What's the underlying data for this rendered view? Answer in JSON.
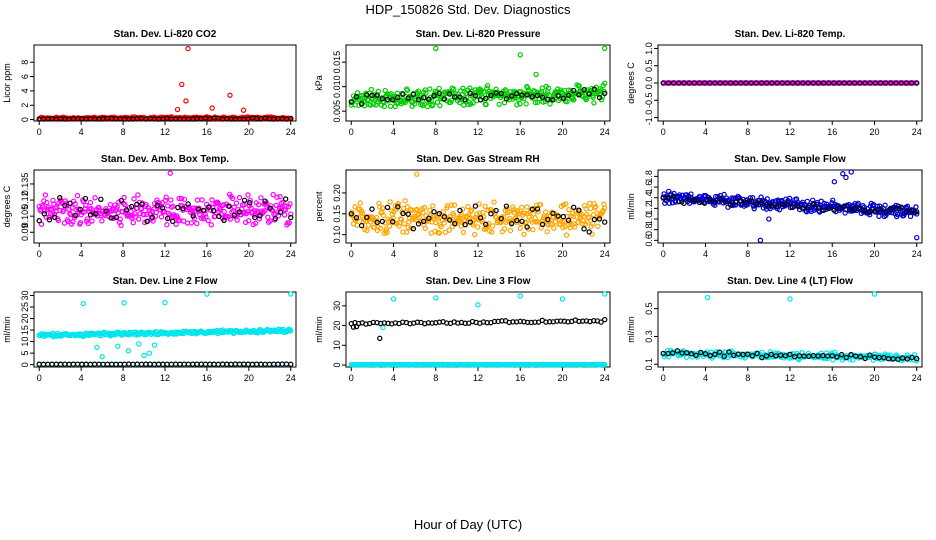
{
  "page": {
    "title": "HDP_150826  Std. Dev. Diagnostics",
    "xlabel": "Hour of Day (UTC)"
  },
  "chart_data": [
    {
      "type": "scatter",
      "title": "Stan. Dev. Li-820 CO2",
      "xlabel": "",
      "ylabel": "Licor ppm",
      "xlim": [
        -0.5,
        24.5
      ],
      "ylim": [
        -0.2,
        10.4
      ],
      "xticks": [
        0,
        4,
        8,
        12,
        16,
        20,
        24
      ],
      "yticks": [
        0,
        2,
        4,
        6,
        8
      ],
      "series": [
        {
          "color": "#ff0000",
          "kind": "noise",
          "base": 0.2,
          "spread": 0.2,
          "n": 220,
          "seed": 11
        },
        {
          "color": "#ff0000",
          "kind": "points",
          "x": [
            14.2,
            13.6,
            18.2,
            14.0,
            13.2,
            16.5,
            19.5
          ],
          "y": [
            9.9,
            4.9,
            3.4,
            2.6,
            1.4,
            1.6,
            1.3
          ]
        },
        {
          "color": "#000000",
          "kind": "noise",
          "base": 0.1,
          "spread": 0.12,
          "n": 60,
          "seed": 12
        }
      ]
    },
    {
      "type": "scatter",
      "title": "Stan. Dev. Li-820 Pressure",
      "xlabel": "",
      "ylabel": "kPa",
      "xlim": [
        -0.5,
        24.5
      ],
      "ylim": [
        0.003,
        0.0185
      ],
      "xticks": [
        0,
        4,
        8,
        12,
        16,
        20,
        24
      ],
      "yticks": [
        0.005,
        0.01,
        0.015
      ],
      "ytick_labels": [
        "0.005",
        "0.010",
        "0.015"
      ],
      "series": [
        {
          "color": "#00cc00",
          "kind": "noise",
          "base": 0.0075,
          "spread": 0.0022,
          "trend": 5e-05,
          "n": 330,
          "seed": 21
        },
        {
          "color": "#00cc00",
          "kind": "points",
          "x": [
            8.0,
            16.0,
            24.0,
            17.5
          ],
          "y": [
            0.0178,
            0.0165,
            0.0178,
            0.0125
          ]
        },
        {
          "color": "#000000",
          "kind": "noise",
          "base": 0.0075,
          "spread": 0.0012,
          "trend": 4e-05,
          "n": 50,
          "seed": 22
        }
      ]
    },
    {
      "type": "scatter",
      "title": "Stan. Dev. Li-820 Temp.",
      "xlabel": "",
      "ylabel": "degrees C",
      "xlim": [
        -0.5,
        24.5
      ],
      "ylim": [
        -1.1,
        1.1
      ],
      "xticks": [
        0,
        4,
        8,
        12,
        16,
        20,
        24
      ],
      "yticks": [
        -1.0,
        -0.5,
        0.0,
        0.5,
        1.0
      ],
      "ytick_labels": [
        "-1.0",
        "-0.5",
        "0.0",
        "0.5",
        "1.0"
      ],
      "series": [
        {
          "color": "#ff00ff",
          "kind": "noise",
          "base": 0.0,
          "spread": 0.0,
          "n": 160,
          "seed": 31
        },
        {
          "color": "#000000",
          "kind": "noise",
          "base": 0.0,
          "spread": 0.0,
          "n": 50,
          "seed": 32
        }
      ]
    },
    {
      "type": "scatter",
      "title": "Stan. Dev. Amb. Box Temp.",
      "xlabel": "",
      "ylabel": "degrees C",
      "xlim": [
        -0.5,
        24.5
      ],
      "ylim": [
        0.08,
        0.148
      ],
      "xticks": [
        0,
        4,
        8,
        12,
        16,
        20,
        24
      ],
      "yticks": [
        0.09,
        0.105,
        0.12,
        0.135
      ],
      "ytick_labels": [
        "0.09",
        "0.105",
        "0.12",
        "0.135"
      ],
      "series": [
        {
          "color": "#ff00ff",
          "kind": "noise",
          "base": 0.11,
          "spread": 0.016,
          "n": 330,
          "seed": 41
        },
        {
          "color": "#000000",
          "kind": "noise",
          "base": 0.11,
          "spread": 0.014,
          "n": 50,
          "seed": 42
        },
        {
          "color": "#ff00ff",
          "kind": "points",
          "x": [
            12.5
          ],
          "y": [
            0.145
          ]
        }
      ]
    },
    {
      "type": "scatter",
      "title": "Stan. Dev. Gas Stream RH",
      "xlabel": "",
      "ylabel": "percent",
      "xlim": [
        -0.5,
        24.5
      ],
      "ylim": [
        0.08,
        0.255
      ],
      "xticks": [
        0,
        4,
        8,
        12,
        16,
        20,
        24
      ],
      "yticks": [
        0.1,
        0.15,
        0.2
      ],
      "ytick_labels": [
        "0.10",
        "0.15",
        "0.20"
      ],
      "series": [
        {
          "color": "#ffa500",
          "kind": "noise",
          "base": 0.14,
          "spread": 0.045,
          "n": 340,
          "seed": 51
        },
        {
          "color": "#000000",
          "kind": "noise",
          "base": 0.14,
          "spread": 0.04,
          "n": 50,
          "seed": 52
        },
        {
          "color": "#ffa500",
          "kind": "points",
          "x": [
            6.2
          ],
          "y": [
            0.245
          ]
        }
      ]
    },
    {
      "type": "scatter",
      "title": "Stan. Dev. Sample Flow",
      "xlabel": "",
      "ylabel": "ml/min",
      "xlim": [
        -0.5,
        24.5
      ],
      "ylim": [
        0.55,
        1.92
      ],
      "xticks": [
        0,
        4,
        8,
        12,
        16,
        20,
        24
      ],
      "yticks": [
        0.6,
        0.8,
        1.0,
        1.2,
        1.4,
        1.6,
        1.8
      ],
      "ytick_labels": [
        "0.6",
        "0.8",
        "1.0",
        "1.2",
        "1.4",
        "1.6",
        "1.8"
      ],
      "series": [
        {
          "color": "#0000cc",
          "kind": "noise",
          "base": 1.4,
          "spread": 0.14,
          "trend": -0.011,
          "n": 330,
          "seed": 61
        },
        {
          "color": "#0000cc",
          "kind": "points",
          "x": [
            17.0,
            17.3,
            17.8,
            9.2,
            24.0,
            16.2,
            10.0
          ],
          "y": [
            1.85,
            1.78,
            1.9,
            0.6,
            0.65,
            1.7,
            1.0
          ]
        },
        {
          "color": "#000000",
          "kind": "noise",
          "base": 1.38,
          "spread": 0.08,
          "trend": -0.01,
          "n": 50,
          "seed": 62
        }
      ]
    },
    {
      "type": "scatter",
      "title": "Stan. Dev. Line 2 Flow",
      "xlabel": "",
      "ylabel": "ml/min",
      "xlim": [
        -0.5,
        24.5
      ],
      "ylim": [
        -1.0,
        31.5
      ],
      "xticks": [
        0,
        4,
        8,
        12,
        16,
        20,
        24
      ],
      "yticks": [
        0,
        5,
        10,
        15,
        20,
        25,
        30
      ],
      "series": [
        {
          "color": "#00e5ee",
          "kind": "noise",
          "base": 12.8,
          "spread": 0.9,
          "trend": 0.08,
          "n": 260,
          "seed": 71
        },
        {
          "color": "#00e5ee",
          "kind": "points",
          "x": [
            4.2,
            8.1,
            12.0,
            16.0,
            24.0,
            5.5,
            6.0,
            8.5,
            10.0,
            11.0,
            9.5,
            6.8,
            7.5,
            10.5
          ],
          "y": [
            26.5,
            26.8,
            26.9,
            30.6,
            30.8,
            7.5,
            3.5,
            6.0,
            4.0,
            8.5,
            9.0,
            12.5,
            8.0,
            5.0
          ]
        },
        {
          "color": "#00e5ee",
          "kind": "noise",
          "base": 0.2,
          "spread": 0.1,
          "n": 60,
          "seed": 73
        },
        {
          "color": "#000000",
          "kind": "noise",
          "base": 0.2,
          "spread": 0.1,
          "n": 60,
          "seed": 72
        }
      ]
    },
    {
      "type": "scatter",
      "title": "Stan. Dev. Line 3 Flow",
      "xlabel": "",
      "ylabel": "ml/min",
      "xlim": [
        -0.5,
        24.5
      ],
      "ylim": [
        -1.0,
        37.0
      ],
      "xticks": [
        0,
        4,
        8,
        12,
        16,
        20,
        24
      ],
      "yticks": [
        0,
        10,
        20,
        30
      ],
      "series": [
        {
          "color": "#00e5ee",
          "kind": "noise",
          "base": 0.2,
          "spread": 0.1,
          "n": 220,
          "seed": 81
        },
        {
          "color": "#00e5ee",
          "kind": "points",
          "x": [
            4.0,
            8.0,
            12.0,
            16.0,
            20.0,
            24.0,
            3.0
          ],
          "y": [
            33.5,
            34.0,
            30.5,
            35.0,
            33.5,
            36.0,
            19.0
          ]
        },
        {
          "color": "#000000",
          "kind": "noise",
          "base": 21.0,
          "spread": 0.7,
          "trend": 0.06,
          "n": 70,
          "seed": 82
        },
        {
          "color": "#000000",
          "kind": "points",
          "x": [
            2.7,
            0.2,
            0.5
          ],
          "y": [
            13.5,
            19.2,
            19.5
          ]
        }
      ]
    },
    {
      "type": "scatter",
      "title": "Stan. Dev. Line 4 (LT) Flow",
      "xlabel": "",
      "ylabel": "ml/min",
      "xlim": [
        -0.5,
        24.5
      ],
      "ylim": [
        0.08,
        0.62
      ],
      "xticks": [
        0,
        4,
        8,
        12,
        16,
        20,
        24
      ],
      "yticks": [
        0.1,
        0.3,
        0.5
      ],
      "ytick_labels": [
        "0.1",
        "0.3",
        "0.5"
      ],
      "series": [
        {
          "color": "#00e5ee",
          "kind": "noise",
          "base": 0.18,
          "spread": 0.03,
          "trend": -0.0015,
          "n": 240,
          "seed": 91
        },
        {
          "color": "#00e5ee",
          "kind": "points",
          "x": [
            4.2,
            12.0,
            20.0
          ],
          "y": [
            0.58,
            0.57,
            0.61
          ]
        },
        {
          "color": "#000000",
          "kind": "noise",
          "base": 0.18,
          "spread": 0.02,
          "trend": -0.0015,
          "n": 55,
          "seed": 92
        }
      ]
    }
  ]
}
